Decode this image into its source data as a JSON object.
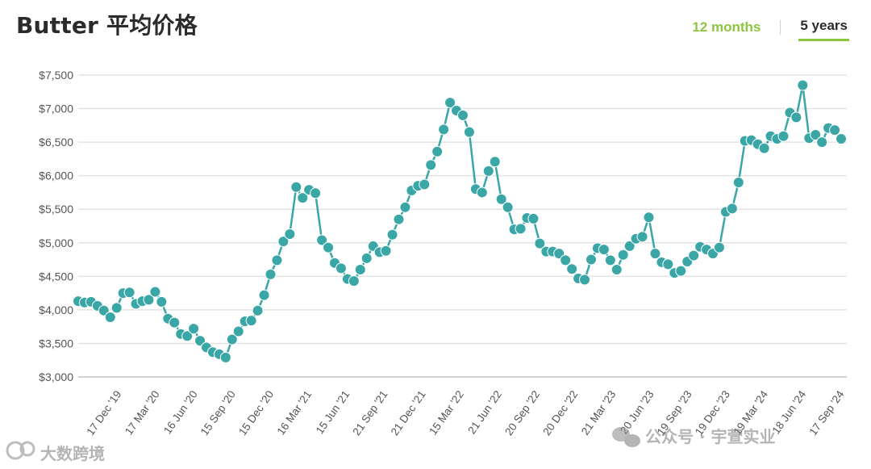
{
  "header": {
    "title": "Butter 平均价格",
    "tabs": [
      {
        "label": "12 months",
        "active": false
      },
      {
        "label": "5 years",
        "active": true
      }
    ]
  },
  "colors": {
    "series": "#3aa6a6",
    "accent": "#8cc63f",
    "grid": "#e3e3e3"
  },
  "watermarks": {
    "left": "大数跨境",
    "right": "公众号 · 宇萱实业"
  },
  "chart_data": {
    "type": "line",
    "title": "Butter 平均价格",
    "xlabel": "",
    "ylabel": "",
    "ylim": [
      3000,
      7500
    ],
    "y_ticks": [
      3000,
      3500,
      4000,
      4500,
      5000,
      5500,
      6000,
      6500,
      7000,
      7500
    ],
    "y_tick_labels": [
      "$3,000",
      "$3,500",
      "$4,000",
      "$4,500",
      "$5,000",
      "$5,500",
      "$6,000",
      "$6,500",
      "$7,000",
      "$7,500"
    ],
    "x_tick_labels": [
      "17 Dec '19",
      "17 Mar '20",
      "16 Jun '20",
      "15 Sep '20",
      "15 Dec '20",
      "16 Mar '21",
      "15 Jun '21",
      "21 Sep '21",
      "21 Dec '21",
      "15 Mar '22",
      "21 Jun '22",
      "20 Sep '22",
      "20 Dec '22",
      "21 Mar '23",
      "20 Jun '23",
      "19 Sep '23",
      "19 Dec '23",
      "19 Mar '24",
      "18 Jun '24",
      "17 Sep '24"
    ],
    "grid": true,
    "legend": "none",
    "series": [
      {
        "values": [
          4130,
          4110,
          4120,
          4060,
          3990,
          3890,
          4030,
          4250,
          4260,
          4090,
          4130,
          4150,
          4270,
          4120,
          3870,
          3810,
          3640,
          3610,
          3720,
          3540,
          3440,
          3370,
          3340,
          3290,
          3560,
          3680,
          3830,
          3840,
          3990,
          4220,
          4530,
          4740,
          5020,
          5130,
          5830,
          5670,
          5790,
          5740,
          5040,
          4930,
          4700,
          4620,
          4460,
          4430,
          4600,
          4770,
          4950,
          4860,
          4880,
          5120,
          5350,
          5530,
          5780,
          5850,
          5870,
          6160,
          6360,
          6690,
          7090,
          6970,
          6900,
          6650,
          5800,
          5750,
          6070,
          6210,
          5650,
          5530,
          5200,
          5210,
          5370,
          5360,
          4990,
          4870,
          4870,
          4840,
          4740,
          4610,
          4470,
          4450,
          4750,
          4920,
          4900,
          4740,
          4600,
          4820,
          4950,
          5060,
          5090,
          5380,
          4840,
          4710,
          4680,
          4550,
          4580,
          4720,
          4810,
          4940,
          4900,
          4840,
          4930,
          5460,
          5510,
          5900,
          6520,
          6530,
          6470,
          6410,
          6590,
          6550,
          6590,
          6940,
          6870,
          7350,
          6560,
          6610,
          6500,
          6710,
          6680,
          6550
        ]
      }
    ]
  }
}
